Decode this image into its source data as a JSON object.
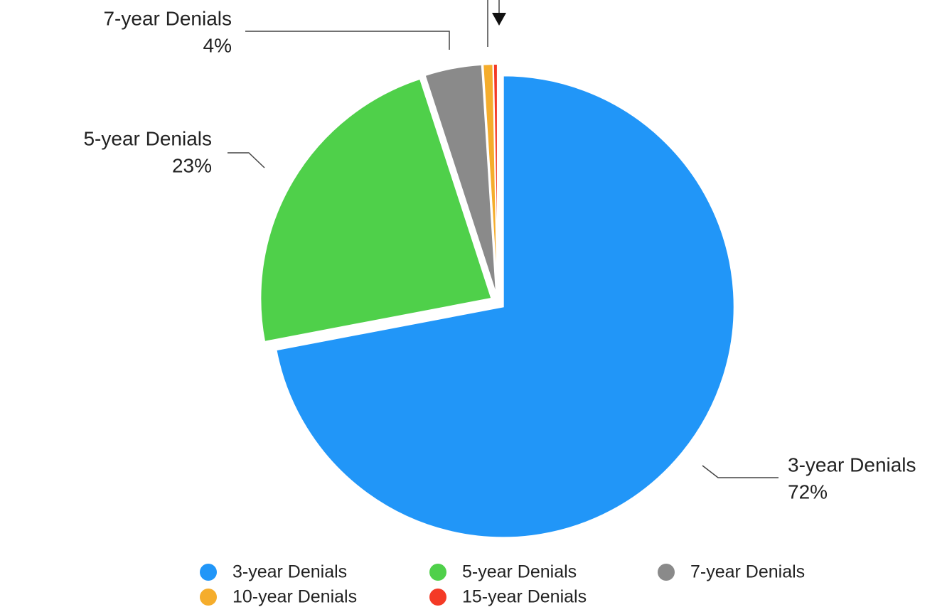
{
  "chart_data": {
    "type": "pie",
    "categories": [
      "3-year Denials",
      "5-year Denials",
      "7-year Denials",
      "10-year Denials",
      "15-year Denials"
    ],
    "values": [
      72,
      23,
      4,
      0.7,
      0.3
    ],
    "value_labels": [
      "72%",
      "23%",
      "4%",
      null,
      null
    ],
    "colors": [
      "#2196f8",
      "#4fd04a",
      "#8a8a8a",
      "#f5ad2c",
      "#f43a26"
    ],
    "legend": "bottom"
  }
}
